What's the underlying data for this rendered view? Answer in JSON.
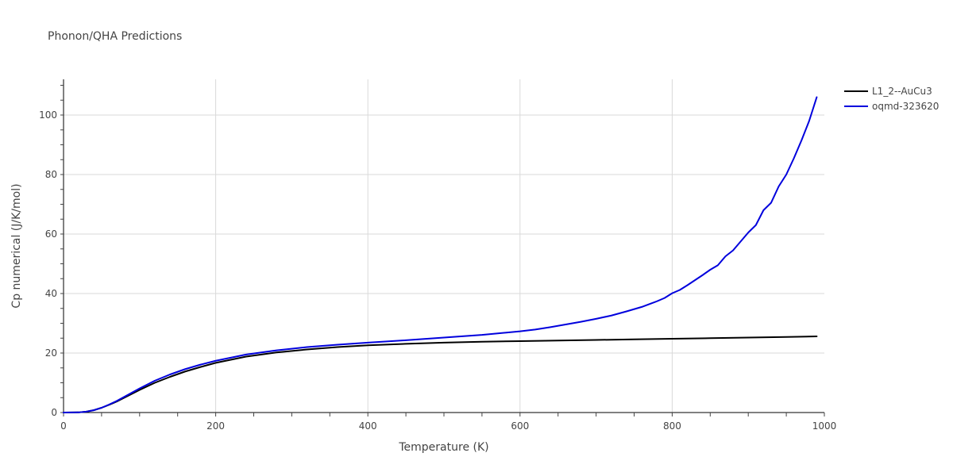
{
  "chart_data": {
    "type": "line",
    "title": "Phonon/QHA Predictions",
    "xlabel": "Temperature (K)",
    "ylabel": "Cp numerical (J/K/mol)",
    "xlim": [
      0,
      1000
    ],
    "ylim": [
      0,
      112
    ],
    "xticks": [
      0,
      200,
      400,
      600,
      800,
      1000
    ],
    "yticks": [
      0,
      20,
      40,
      60,
      80,
      100
    ],
    "grid": true,
    "legend": "top-right",
    "series": [
      {
        "name": "L1_2--AuCu3",
        "color": "#000000",
        "x": [
          0,
          20,
          30,
          40,
          50,
          60,
          70,
          80,
          90,
          100,
          120,
          140,
          160,
          180,
          200,
          240,
          280,
          320,
          360,
          400,
          450,
          500,
          550,
          600,
          650,
          700,
          750,
          800,
          850,
          900,
          950,
          990
        ],
        "y": [
          0,
          0.05,
          0.3,
          0.8,
          1.6,
          2.6,
          3.7,
          5.0,
          6.3,
          7.6,
          10.0,
          12.0,
          13.8,
          15.3,
          16.7,
          18.8,
          20.2,
          21.2,
          22.0,
          22.6,
          23.1,
          23.5,
          23.8,
          24.0,
          24.2,
          24.4,
          24.6,
          24.8,
          25.0,
          25.2,
          25.4,
          25.6
        ]
      },
      {
        "name": "oqmd-323620",
        "color": "#0000dd",
        "x": [
          0,
          20,
          30,
          40,
          50,
          60,
          70,
          80,
          90,
          100,
          120,
          140,
          160,
          180,
          200,
          240,
          280,
          320,
          360,
          400,
          450,
          500,
          550,
          600,
          620,
          640,
          660,
          680,
          700,
          720,
          740,
          760,
          780,
          790,
          800,
          810,
          820,
          830,
          840,
          850,
          860,
          870,
          880,
          890,
          900,
          910,
          920,
          930,
          940,
          950,
          960,
          970,
          980,
          990
        ],
        "y": [
          0,
          0.05,
          0.3,
          0.8,
          1.6,
          2.7,
          3.9,
          5.3,
          6.7,
          8.1,
          10.7,
          12.8,
          14.6,
          16.1,
          17.4,
          19.5,
          20.9,
          22.0,
          22.8,
          23.5,
          24.3,
          25.2,
          26.1,
          27.3,
          27.9,
          28.7,
          29.6,
          30.5,
          31.5,
          32.6,
          34.0,
          35.5,
          37.4,
          38.5,
          40.1,
          41.2,
          42.8,
          44.5,
          46.2,
          48.0,
          49.5,
          52.5,
          54.5,
          57.5,
          60.5,
          63.0,
          68.0,
          70.5,
          76.0,
          80.0,
          85.5,
          91.5,
          98.0,
          106.0
        ]
      }
    ]
  }
}
